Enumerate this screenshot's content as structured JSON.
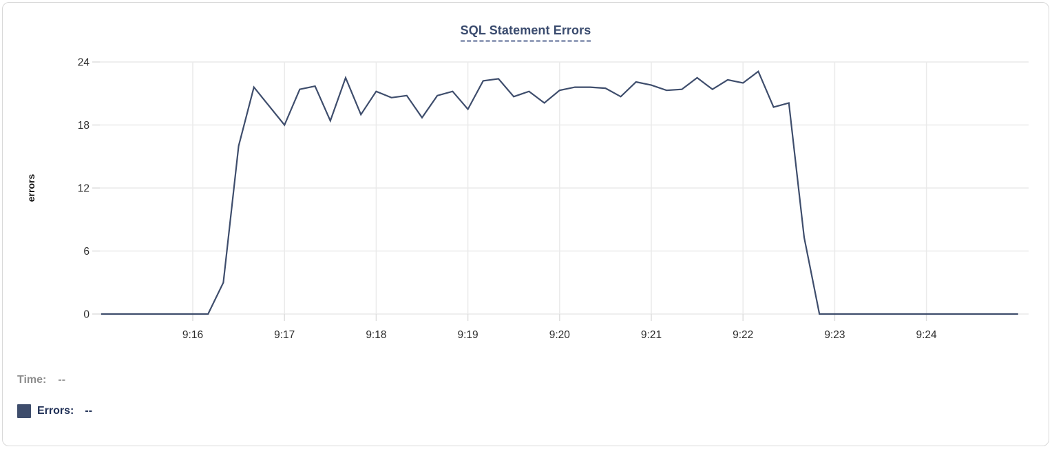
{
  "chart_data": {
    "type": "line",
    "title": "SQL Statement Errors",
    "ylabel": "errors",
    "ylim": [
      0,
      24
    ],
    "yticks": [
      0,
      6,
      12,
      18,
      24
    ],
    "xticks": [
      "9:16",
      "9:17",
      "9:18",
      "9:19",
      "9:20",
      "9:21",
      "9:22",
      "9:23",
      "9:24"
    ],
    "x_range": [
      "9:15:00",
      "9:25:00"
    ],
    "grid": true,
    "line_color": "#3e4d6c",
    "grid_color": "#eaeaea",
    "tick_label_color": "#2d2d2d",
    "series": [
      {
        "name": "Errors",
        "times": [
          "9:15:00",
          "9:15:10",
          "9:15:20",
          "9:15:30",
          "9:15:40",
          "9:15:50",
          "9:16:00",
          "9:16:10",
          "9:16:20",
          "9:16:30",
          "9:16:40",
          "9:16:50",
          "9:17:00",
          "9:17:10",
          "9:17:20",
          "9:17:30",
          "9:17:40",
          "9:17:50",
          "9:18:00",
          "9:18:10",
          "9:18:20",
          "9:18:30",
          "9:18:40",
          "9:18:50",
          "9:19:00",
          "9:19:10",
          "9:19:20",
          "9:19:30",
          "9:19:40",
          "9:19:50",
          "9:20:00",
          "9:20:10",
          "9:20:20",
          "9:20:30",
          "9:20:40",
          "9:20:50",
          "9:21:00",
          "9:21:10",
          "9:21:20",
          "9:21:30",
          "9:21:40",
          "9:21:50",
          "9:22:00",
          "9:22:10",
          "9:22:20",
          "9:22:30",
          "9:22:40",
          "9:22:50",
          "9:23:00",
          "9:23:10",
          "9:23:20",
          "9:23:30",
          "9:23:40",
          "9:23:50",
          "9:24:00",
          "9:24:10",
          "9:24:20",
          "9:24:30",
          "9:24:40",
          "9:24:50",
          "9:25:00"
        ],
        "values": [
          0,
          0,
          0,
          0,
          0,
          0,
          0,
          0,
          3,
          16,
          21.6,
          19.8,
          18,
          21.4,
          21.7,
          18.4,
          22.5,
          19,
          21.2,
          20.6,
          20.8,
          18.7,
          20.8,
          21.2,
          19.5,
          22.2,
          22.4,
          20.7,
          21.2,
          20.1,
          21.3,
          21.6,
          21.6,
          21.5,
          20.7,
          22.1,
          21.8,
          21.3,
          21.4,
          22.5,
          21.4,
          22.3,
          22,
          23.1,
          19.7,
          20.1,
          7.3,
          0,
          0,
          0,
          0,
          0,
          0,
          0,
          0,
          0,
          0,
          0,
          0,
          0,
          0
        ]
      }
    ]
  },
  "readout": {
    "time_label": "Time:",
    "time_value": "--",
    "errors_label": "Errors:",
    "errors_value": "--",
    "swatch_color": "#3e4d6c"
  },
  "colors": {
    "accent": "#3e4d6c",
    "title": "#3a4b6e",
    "title_underline": "#97a1bc",
    "muted": "#8d8d8d",
    "legend_text": "#1f2f55",
    "card_border": "#d8d8d8"
  }
}
